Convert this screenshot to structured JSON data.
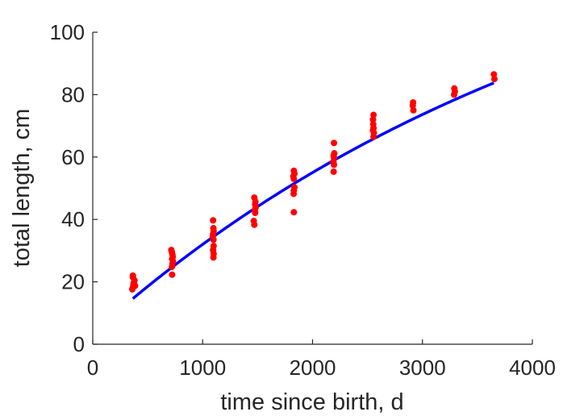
{
  "chart_data": {
    "type": "scatter",
    "xlabel": "time since birth, d",
    "ylabel": "total length, cm",
    "xlim": [
      0,
      4000
    ],
    "ylim": [
      0,
      100
    ],
    "xticks": [
      0,
      1000,
      2000,
      3000,
      4000
    ],
    "yticks": [
      0,
      20,
      40,
      60,
      80,
      100
    ],
    "xtick_labels": [
      "0",
      "1000",
      "2000",
      "3000",
      "4000"
    ],
    "ytick_labels": [
      "0",
      "20",
      "40",
      "60",
      "80",
      "100"
    ],
    "grid": false,
    "series": [
      {
        "kind": "points",
        "color": "#ff0000",
        "points": [
          [
            365,
            22.0
          ],
          [
            365,
            21.5
          ],
          [
            380,
            20.5
          ],
          [
            375,
            19.8
          ],
          [
            370,
            19.2
          ],
          [
            385,
            18.7
          ],
          [
            365,
            18.2
          ],
          [
            360,
            17.6
          ],
          [
            715,
            30.2
          ],
          [
            720,
            29.5
          ],
          [
            725,
            28.7
          ],
          [
            728,
            28.0
          ],
          [
            722,
            27.3
          ],
          [
            730,
            26.6
          ],
          [
            725,
            25.8
          ],
          [
            720,
            24.8
          ],
          [
            722,
            22.3
          ],
          [
            1095,
            39.7
          ],
          [
            1098,
            37.2
          ],
          [
            1100,
            36.3
          ],
          [
            1095,
            35.3
          ],
          [
            1092,
            34.5
          ],
          [
            1098,
            33.5
          ],
          [
            1100,
            31.5
          ],
          [
            1095,
            30.2
          ],
          [
            1100,
            29.0
          ],
          [
            1098,
            27.8
          ],
          [
            1470,
            47.0
          ],
          [
            1480,
            45.7
          ],
          [
            1478,
            44.8
          ],
          [
            1482,
            43.8
          ],
          [
            1475,
            43.0
          ],
          [
            1478,
            42.1
          ],
          [
            1465,
            39.5
          ],
          [
            1470,
            38.3
          ],
          [
            1830,
            55.6
          ],
          [
            1835,
            54.7
          ],
          [
            1825,
            53.8
          ],
          [
            1830,
            53.0
          ],
          [
            1835,
            50.3
          ],
          [
            1830,
            49.3
          ],
          [
            1828,
            48.2
          ],
          [
            1830,
            42.3
          ],
          [
            2195,
            64.5
          ],
          [
            2198,
            61.2
          ],
          [
            2192,
            60.5
          ],
          [
            2195,
            59.8
          ],
          [
            2190,
            58.5
          ],
          [
            2195,
            57.5
          ],
          [
            2192,
            55.3
          ],
          [
            2555,
            73.5
          ],
          [
            2550,
            72.0
          ],
          [
            2552,
            70.5
          ],
          [
            2555,
            69.3
          ],
          [
            2550,
            68.6
          ],
          [
            2558,
            67.7
          ],
          [
            2555,
            66.5
          ],
          [
            2915,
            77.5
          ],
          [
            2912,
            76.5
          ],
          [
            2918,
            75.0
          ],
          [
            3290,
            82.0
          ],
          [
            3295,
            81.0
          ],
          [
            3288,
            80.0
          ],
          [
            3650,
            86.5
          ],
          [
            3655,
            85.0
          ]
        ]
      },
      {
        "kind": "curve",
        "color": "#0000ff",
        "x_range": [
          365,
          3650
        ],
        "Linf": 152,
        "k": 0.000213,
        "t0": -110
      }
    ]
  }
}
